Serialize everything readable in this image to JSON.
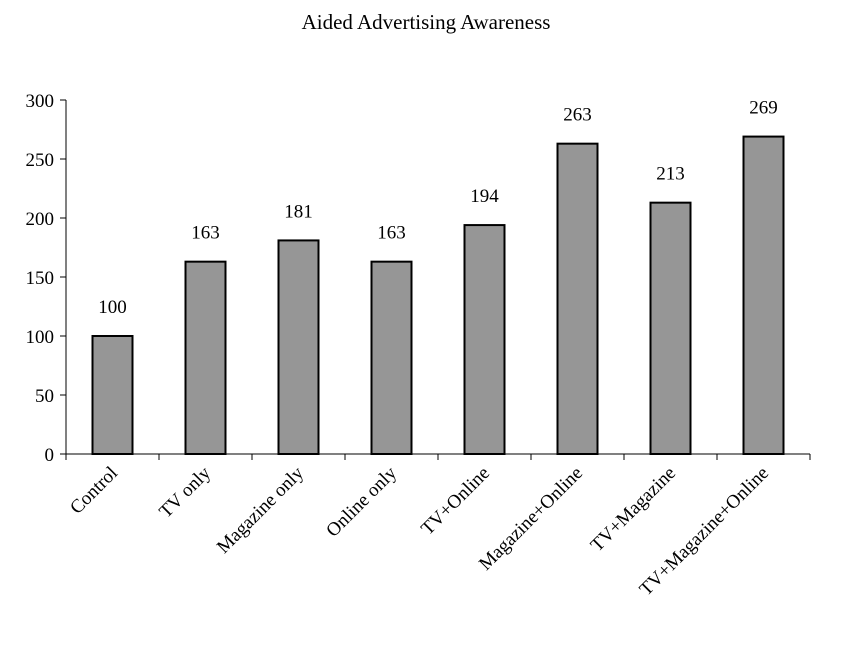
{
  "chart_data": {
    "type": "bar",
    "title": "Aided Advertising Awareness",
    "xlabel": "",
    "ylabel": "",
    "categories": [
      "Control",
      "TV only",
      "Magazine only",
      "Online only",
      "TV+Online",
      "Magazine+Online",
      "TV+Magazine",
      "TV+Magazine+Online"
    ],
    "values": [
      100,
      163,
      181,
      163,
      194,
      263,
      213,
      269
    ],
    "ylim": [
      0,
      300
    ],
    "yticks": [
      0,
      50,
      100,
      150,
      200,
      250,
      300
    ],
    "grid": false,
    "legend": "none",
    "colors": {
      "bar_fill": "#969696",
      "bar_stroke": "#000000"
    }
  }
}
